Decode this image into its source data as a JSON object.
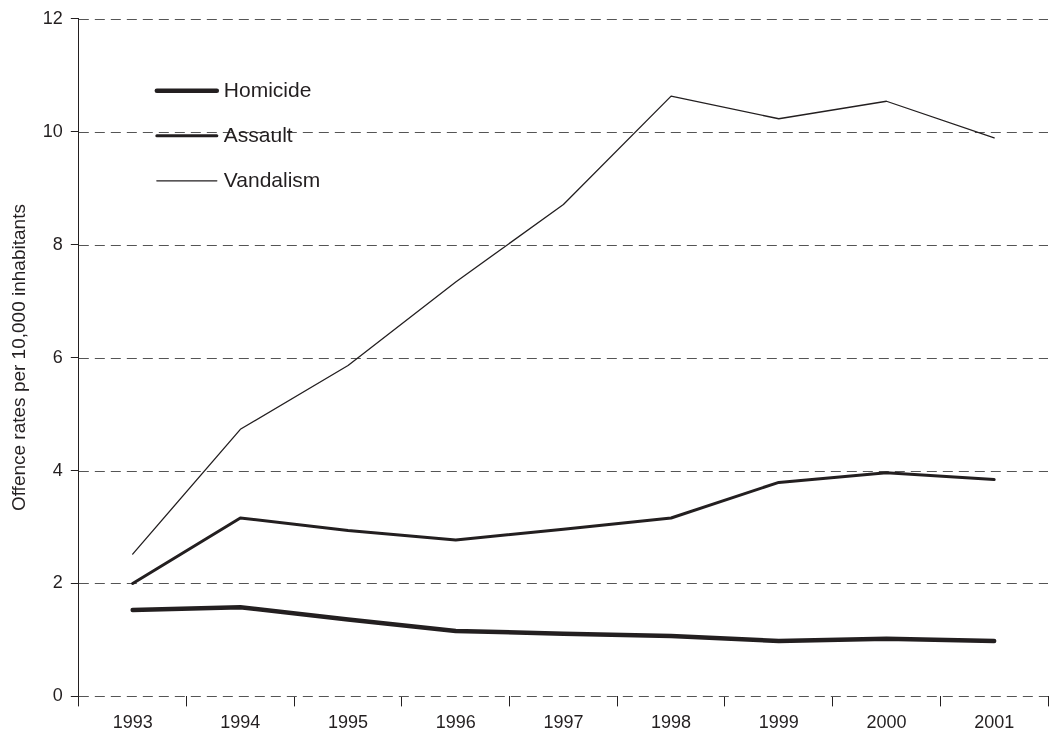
{
  "chart_data": {
    "type": "line",
    "ylabel": "Offence rates per 10,000 inhabitants",
    "categories": [
      "1993",
      "1994",
      "1995",
      "1996",
      "1997",
      "1998",
      "1999",
      "2000",
      "2001"
    ],
    "series": [
      {
        "name": "Homicide",
        "color": "#231f20",
        "values": [
          1.53,
          1.58,
          1.36,
          1.16,
          1.11,
          1.07,
          0.98,
          1.02,
          0.98
        ]
      },
      {
        "name": "Assault",
        "color": "#231f20",
        "values": [
          2.0,
          3.16,
          2.94,
          2.77,
          2.96,
          3.16,
          3.79,
          3.96,
          3.84
        ]
      },
      {
        "name": "Vandalism",
        "color": "#231f20",
        "values": [
          2.52,
          4.73,
          5.86,
          7.34,
          8.71,
          10.63,
          10.23,
          10.54,
          9.89
        ]
      }
    ],
    "ylim": [
      0,
      12
    ],
    "yticks": [
      0,
      2,
      4,
      6,
      8,
      10,
      12
    ],
    "grid": "y",
    "legend": "top left",
    "marker": "none",
    "line_style": "solid"
  }
}
